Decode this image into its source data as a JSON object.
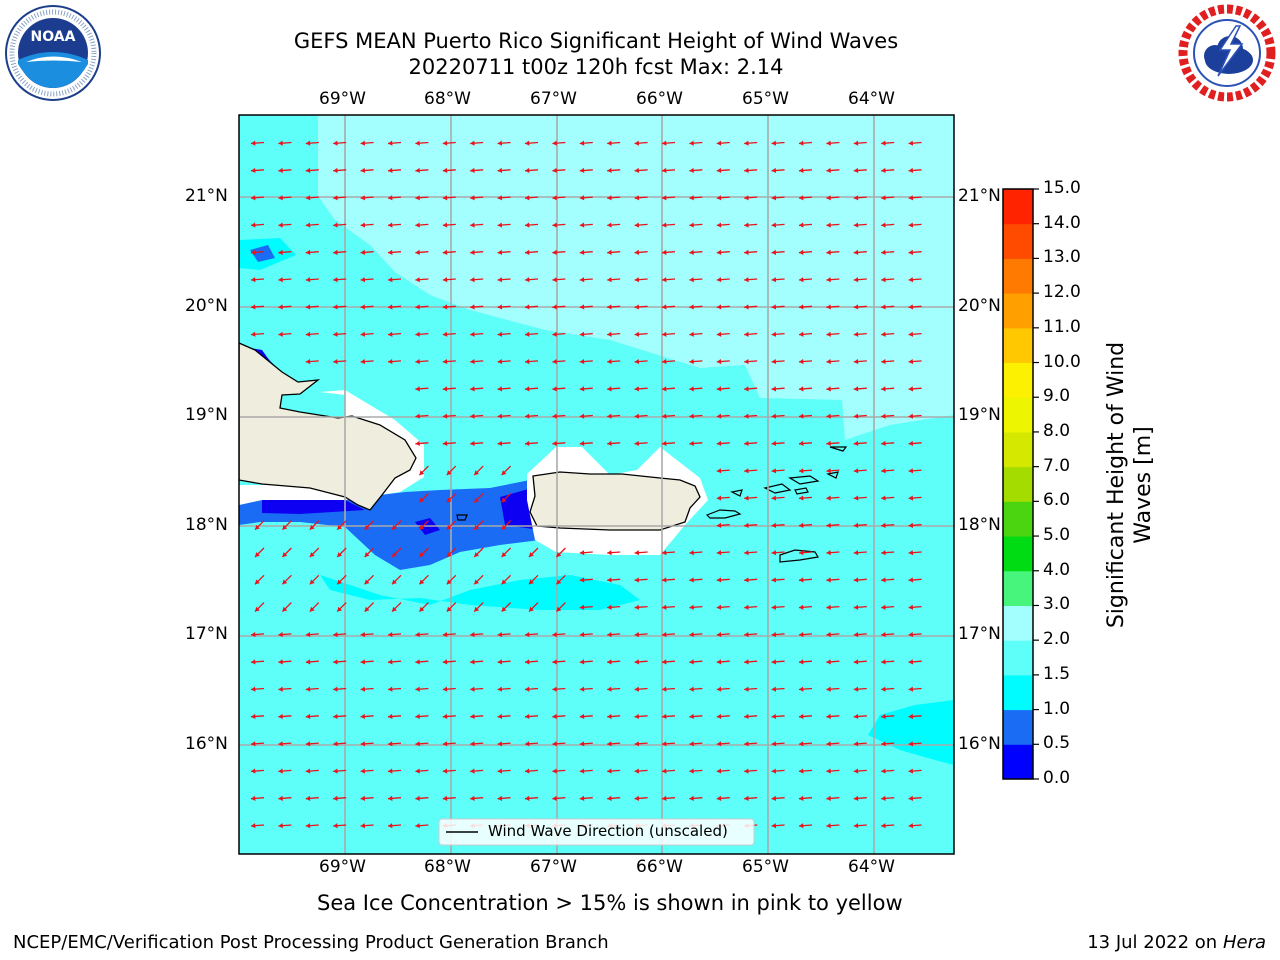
{
  "header": {
    "title_line1": "GEFS MEAN Puerto Rico Significant Height of Wind Waves",
    "title_line2": "20220711 t00z 120h fcst   Max: 2.14"
  },
  "logos": {
    "noaa_text": "NOAA",
    "noaa_ring_text": "NATIONAL OCEANIC AND ATMOSPHERIC ADMINISTRATION · U.S. DEPARTMENT OF COMMERCE",
    "nws_ring_text": "NATIONAL WEATHER SERVICE"
  },
  "map": {
    "lon_labels": [
      "69°W",
      "68°W",
      "67°W",
      "66°W",
      "65°W",
      "64°W"
    ],
    "lat_labels": [
      "21°N",
      "20°N",
      "19°N",
      "18°N",
      "17°N",
      "16°N"
    ],
    "legend_label": "Wind Wave Direction (unscaled)",
    "colors": {
      "ocean": "#5efff9",
      "calm": "#00fcff",
      "high": "#a2fffe",
      "deep": "#1a6cf5",
      "deeper": "#0d00f2",
      "land": "#efedde",
      "arrow": "#e8141c"
    }
  },
  "colorbar": {
    "label_line1": "Significant Height of Wind",
    "label_line2": "Waves [m]",
    "ticks": [
      "0.0",
      "0.5",
      "1.0",
      "1.5",
      "2.0",
      "3.0",
      "4.0",
      "5.0",
      "6.0",
      "7.0",
      "8.0",
      "9.0",
      "10.0",
      "11.0",
      "12.0",
      "13.0",
      "14.0",
      "15.0"
    ],
    "colors": [
      "#0000ff",
      "#1a6cf5",
      "#00fcff",
      "#5efff9",
      "#a2fffe",
      "#47f47c",
      "#00dc13",
      "#4bd410",
      "#a5dc00",
      "#d4e800",
      "#eef500",
      "#fcf100",
      "#ffc800",
      "#ff9f00",
      "#ff7a00",
      "#ff4b00",
      "#ff2300"
    ]
  },
  "caption": "Sea Ice Concentration > 15% is shown in pink to yellow",
  "footer": {
    "left": "NCEP/EMC/Verification Post Processing Product Generation Branch",
    "right_date": "13 Jul 2022 on ",
    "right_host": "Hera"
  }
}
